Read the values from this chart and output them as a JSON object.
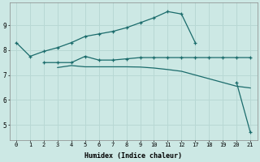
{
  "xlabel": "Humidex (Indice chaleur)",
  "bg_color": "#cce8e4",
  "grid_color": "#b8d8d4",
  "line_color": "#1a6b6b",
  "x_tick_labels": [
    "0",
    "1",
    "2",
    "3",
    "4",
    "5",
    "6",
    "7",
    "8",
    "9",
    "10",
    "11",
    "12",
    "17",
    "18",
    "19",
    "20",
    "21"
  ],
  "y_ticks": [
    5,
    6,
    7,
    8,
    9
  ],
  "ylim": [
    4.4,
    9.9
  ],
  "lines": [
    {
      "xi": [
        0,
        1,
        2,
        3,
        4,
        5,
        6,
        7,
        8,
        9,
        10,
        11,
        12,
        13
      ],
      "y": [
        8.3,
        7.75,
        7.95,
        8.1,
        8.3,
        8.55,
        8.65,
        8.75,
        8.9,
        9.1,
        9.3,
        9.55,
        9.45,
        8.3
      ],
      "marker": true
    },
    {
      "xi": [
        2,
        3,
        4,
        5,
        6,
        7,
        8,
        9,
        10,
        11,
        12,
        13,
        14,
        15,
        16,
        17
      ],
      "y": [
        7.5,
        7.5,
        7.5,
        7.75,
        7.6,
        7.6,
        7.65,
        7.7,
        7.7,
        7.7,
        7.7,
        7.7,
        7.7,
        7.7,
        7.7,
        7.7
      ],
      "marker": true
    },
    {
      "xi": [
        3,
        4,
        5,
        6,
        7,
        8,
        9,
        10,
        11,
        12,
        13,
        14,
        15,
        16,
        17
      ],
      "y": [
        7.3,
        7.38,
        7.33,
        7.33,
        7.33,
        7.33,
        7.32,
        7.28,
        7.22,
        7.15,
        7.0,
        6.85,
        6.7,
        6.55,
        6.48
      ],
      "marker": false
    },
    {
      "xi": [
        16,
        17
      ],
      "y": [
        6.7,
        4.7
      ],
      "marker": true
    }
  ]
}
